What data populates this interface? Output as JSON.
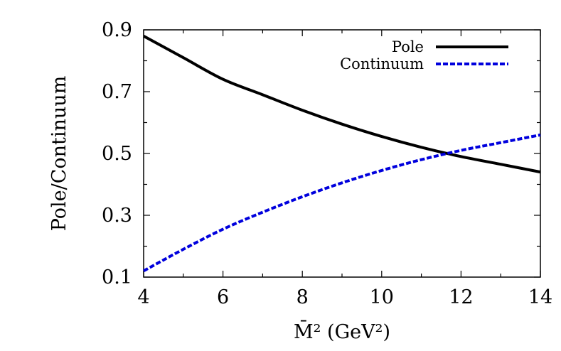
{
  "chart_data": {
    "type": "line",
    "title": "",
    "xlabel": "M̄² (GeV²)",
    "ylabel": "Pole/Continuum",
    "xlim": [
      4,
      14
    ],
    "ylim": [
      0.1,
      0.9
    ],
    "xticks": [
      "4",
      "6",
      "8",
      "10",
      "12",
      "14"
    ],
    "yticks": [
      "0.1",
      "0.3",
      "0.5",
      "0.7",
      "0.9"
    ],
    "grid": false,
    "legend_position": "top-right",
    "series": [
      {
        "name": "Pole",
        "color": "#000000",
        "style": "solid",
        "x": [
          4,
          5,
          6,
          7,
          8,
          9,
          10,
          11,
          12,
          13,
          14
        ],
        "y": [
          0.88,
          0.81,
          0.74,
          0.69,
          0.64,
          0.595,
          0.555,
          0.52,
          0.49,
          0.465,
          0.44
        ]
      },
      {
        "name": "Continuum",
        "color": "#0000dd",
        "style": "dashed",
        "x": [
          4,
          5,
          6,
          7,
          8,
          9,
          10,
          11,
          12,
          13,
          14
        ],
        "y": [
          0.12,
          0.19,
          0.255,
          0.31,
          0.36,
          0.405,
          0.445,
          0.48,
          0.51,
          0.535,
          0.56
        ]
      }
    ]
  }
}
